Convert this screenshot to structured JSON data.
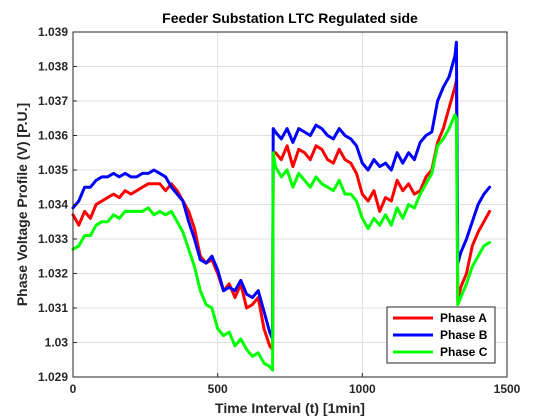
{
  "chart_data": {
    "type": "line",
    "title": "Feeder Substation LTC Regulated side",
    "xlabel": "Time Interval (t) [1min]",
    "ylabel": "Phase Voltage Profile (V) [P.U.]",
    "xlim": [
      0,
      1500
    ],
    "ylim": [
      1.029,
      1.039
    ],
    "xticks": [
      "0",
      "500",
      "1000",
      "1500"
    ],
    "yticks": [
      "1.029",
      "1.03",
      "1.031",
      "1.032",
      "1.033",
      "1.034",
      "1.035",
      "1.036",
      "1.037",
      "1.038",
      "1.039"
    ],
    "grid": true,
    "legend_position": "bottom-right",
    "series": [
      {
        "name": "Phase A",
        "color": "#ff0000",
        "x": [
          0,
          20,
          40,
          60,
          80,
          100,
          120,
          140,
          160,
          180,
          200,
          220,
          240,
          260,
          280,
          300,
          320,
          340,
          360,
          380,
          400,
          420,
          440,
          460,
          480,
          500,
          520,
          540,
          560,
          580,
          600,
          620,
          640,
          660,
          680,
          690,
          692,
          700,
          720,
          740,
          760,
          780,
          800,
          820,
          840,
          860,
          880,
          900,
          920,
          940,
          960,
          980,
          1000,
          1020,
          1040,
          1060,
          1080,
          1100,
          1120,
          1140,
          1160,
          1180,
          1200,
          1220,
          1240,
          1260,
          1280,
          1300,
          1320,
          1325,
          1330,
          1340,
          1360,
          1380,
          1400,
          1420,
          1440
        ],
        "values": [
          1.0337,
          1.0334,
          1.0338,
          1.0336,
          1.034,
          1.0341,
          1.0342,
          1.0343,
          1.0342,
          1.0344,
          1.0343,
          1.0344,
          1.0345,
          1.0346,
          1.0346,
          1.0346,
          1.0344,
          1.0346,
          1.0344,
          1.0341,
          1.0338,
          1.0333,
          1.0325,
          1.0323,
          1.0324,
          1.032,
          1.0315,
          1.0317,
          1.0313,
          1.0317,
          1.031,
          1.0311,
          1.0313,
          1.0304,
          1.0299,
          1.0298,
          1.0355,
          1.0355,
          1.0353,
          1.0357,
          1.0351,
          1.0356,
          1.0355,
          1.0353,
          1.0357,
          1.0356,
          1.0353,
          1.0352,
          1.0356,
          1.0353,
          1.0352,
          1.0349,
          1.0343,
          1.0341,
          1.0344,
          1.0338,
          1.0342,
          1.0341,
          1.0347,
          1.0344,
          1.0346,
          1.0343,
          1.0344,
          1.0348,
          1.035,
          1.0358,
          1.0362,
          1.0368,
          1.0374,
          1.0376,
          1.0312,
          1.0316,
          1.032,
          1.0328,
          1.0332,
          1.0335,
          1.0338
        ]
      },
      {
        "name": "Phase B",
        "color": "#0000ff",
        "x": [
          0,
          20,
          40,
          60,
          80,
          100,
          120,
          140,
          160,
          180,
          200,
          220,
          240,
          260,
          280,
          300,
          320,
          340,
          360,
          380,
          400,
          420,
          440,
          460,
          480,
          500,
          520,
          540,
          560,
          580,
          600,
          620,
          640,
          660,
          680,
          690,
          692,
          700,
          720,
          740,
          760,
          780,
          800,
          820,
          840,
          860,
          880,
          900,
          920,
          940,
          960,
          980,
          1000,
          1020,
          1040,
          1060,
          1080,
          1100,
          1120,
          1140,
          1160,
          1180,
          1200,
          1220,
          1240,
          1260,
          1280,
          1300,
          1320,
          1325,
          1330,
          1340,
          1360,
          1380,
          1400,
          1420,
          1440
        ],
        "values": [
          1.0339,
          1.0341,
          1.0345,
          1.0345,
          1.0347,
          1.0348,
          1.0348,
          1.0349,
          1.0348,
          1.0349,
          1.0348,
          1.0348,
          1.0349,
          1.0349,
          1.035,
          1.0349,
          1.0348,
          1.0345,
          1.0343,
          1.0341,
          1.0335,
          1.033,
          1.0324,
          1.0323,
          1.0325,
          1.0321,
          1.0315,
          1.0316,
          1.0315,
          1.0318,
          1.0314,
          1.0313,
          1.0315,
          1.0309,
          1.0303,
          1.0301,
          1.0362,
          1.0361,
          1.0359,
          1.0362,
          1.0358,
          1.0362,
          1.0361,
          1.036,
          1.0363,
          1.0362,
          1.036,
          1.0359,
          1.0362,
          1.036,
          1.0359,
          1.0357,
          1.0352,
          1.035,
          1.0353,
          1.0351,
          1.0352,
          1.035,
          1.0355,
          1.0352,
          1.0355,
          1.0353,
          1.0358,
          1.036,
          1.0361,
          1.037,
          1.0374,
          1.0377,
          1.0383,
          1.0387,
          1.0323,
          1.0326,
          1.033,
          1.0335,
          1.034,
          1.0343,
          1.0345
        ]
      },
      {
        "name": "Phase C",
        "color": "#00ff00",
        "x": [
          0,
          20,
          40,
          60,
          80,
          100,
          120,
          140,
          160,
          180,
          200,
          220,
          240,
          260,
          280,
          300,
          320,
          340,
          360,
          380,
          400,
          420,
          440,
          460,
          480,
          500,
          520,
          540,
          560,
          580,
          600,
          620,
          640,
          660,
          680,
          690,
          692,
          700,
          720,
          740,
          760,
          780,
          800,
          820,
          840,
          860,
          880,
          900,
          920,
          940,
          960,
          980,
          1000,
          1020,
          1040,
          1060,
          1080,
          1100,
          1120,
          1140,
          1160,
          1180,
          1200,
          1220,
          1240,
          1260,
          1280,
          1300,
          1320,
          1325,
          1330,
          1340,
          1360,
          1380,
          1400,
          1420,
          1440
        ],
        "values": [
          1.0327,
          1.0328,
          1.0331,
          1.0331,
          1.0334,
          1.0335,
          1.0335,
          1.0337,
          1.0336,
          1.0338,
          1.0338,
          1.0338,
          1.0338,
          1.0339,
          1.0337,
          1.0338,
          1.0337,
          1.0338,
          1.0335,
          1.0332,
          1.0327,
          1.0322,
          1.0315,
          1.0311,
          1.031,
          1.0304,
          1.0302,
          1.0303,
          1.0299,
          1.0301,
          1.0298,
          1.0296,
          1.0297,
          1.0294,
          1.0293,
          1.0292,
          1.0355,
          1.0351,
          1.0348,
          1.035,
          1.0345,
          1.0349,
          1.0347,
          1.0345,
          1.0348,
          1.0346,
          1.0345,
          1.0344,
          1.0347,
          1.0343,
          1.0343,
          1.0341,
          1.0336,
          1.0333,
          1.0336,
          1.0334,
          1.0337,
          1.0334,
          1.0339,
          1.0336,
          1.034,
          1.0339,
          1.0343,
          1.0346,
          1.0349,
          1.0357,
          1.0359,
          1.0362,
          1.0366,
          1.0365,
          1.0311,
          1.0313,
          1.0317,
          1.0322,
          1.0325,
          1.0328,
          1.0329
        ]
      }
    ]
  }
}
